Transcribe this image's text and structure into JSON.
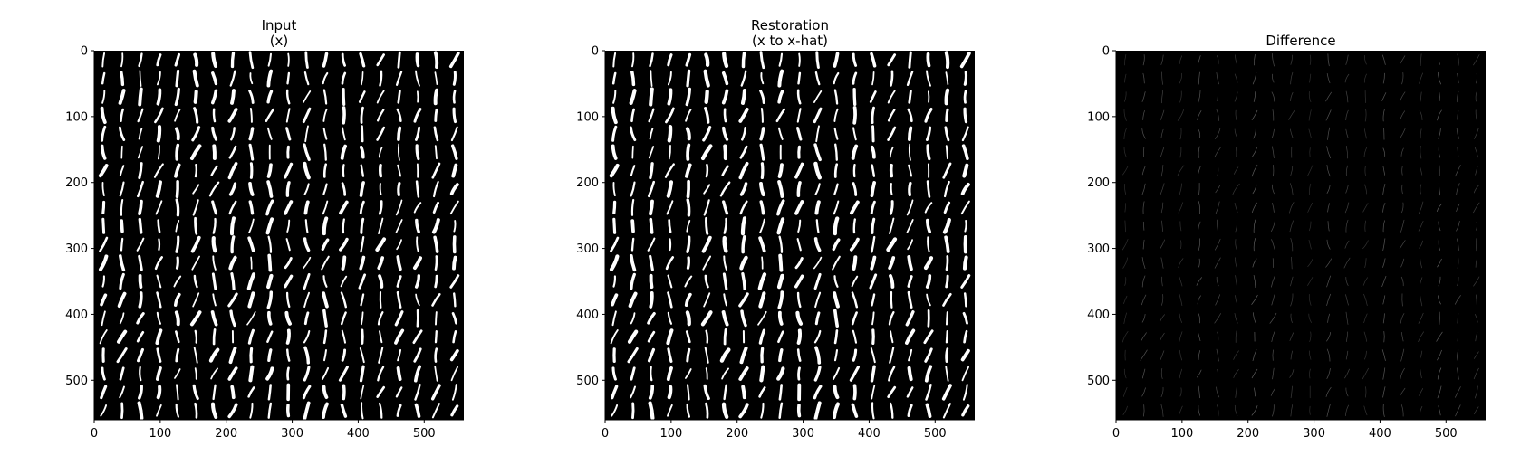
{
  "figure": {
    "panels": [
      {
        "id": "input",
        "title_lines": [
          "Input",
          "(x)"
        ],
        "kind": "input"
      },
      {
        "id": "restoration",
        "title_lines": [
          "Restoration",
          "(x to x-hat)"
        ],
        "kind": "restoration"
      },
      {
        "id": "difference",
        "title_lines": [
          "Difference"
        ],
        "kind": "difference"
      }
    ],
    "x_ticks": [
      0,
      100,
      200,
      300,
      400,
      500
    ],
    "y_ticks": [
      0,
      100,
      200,
      300,
      400,
      500
    ],
    "image_extent": [
      0,
      560
    ],
    "grid_tiles": 20,
    "colors": {
      "background": "#ffffff",
      "image_background": "#000000",
      "stroke": "#ffffff",
      "axis": "#000000"
    }
  }
}
